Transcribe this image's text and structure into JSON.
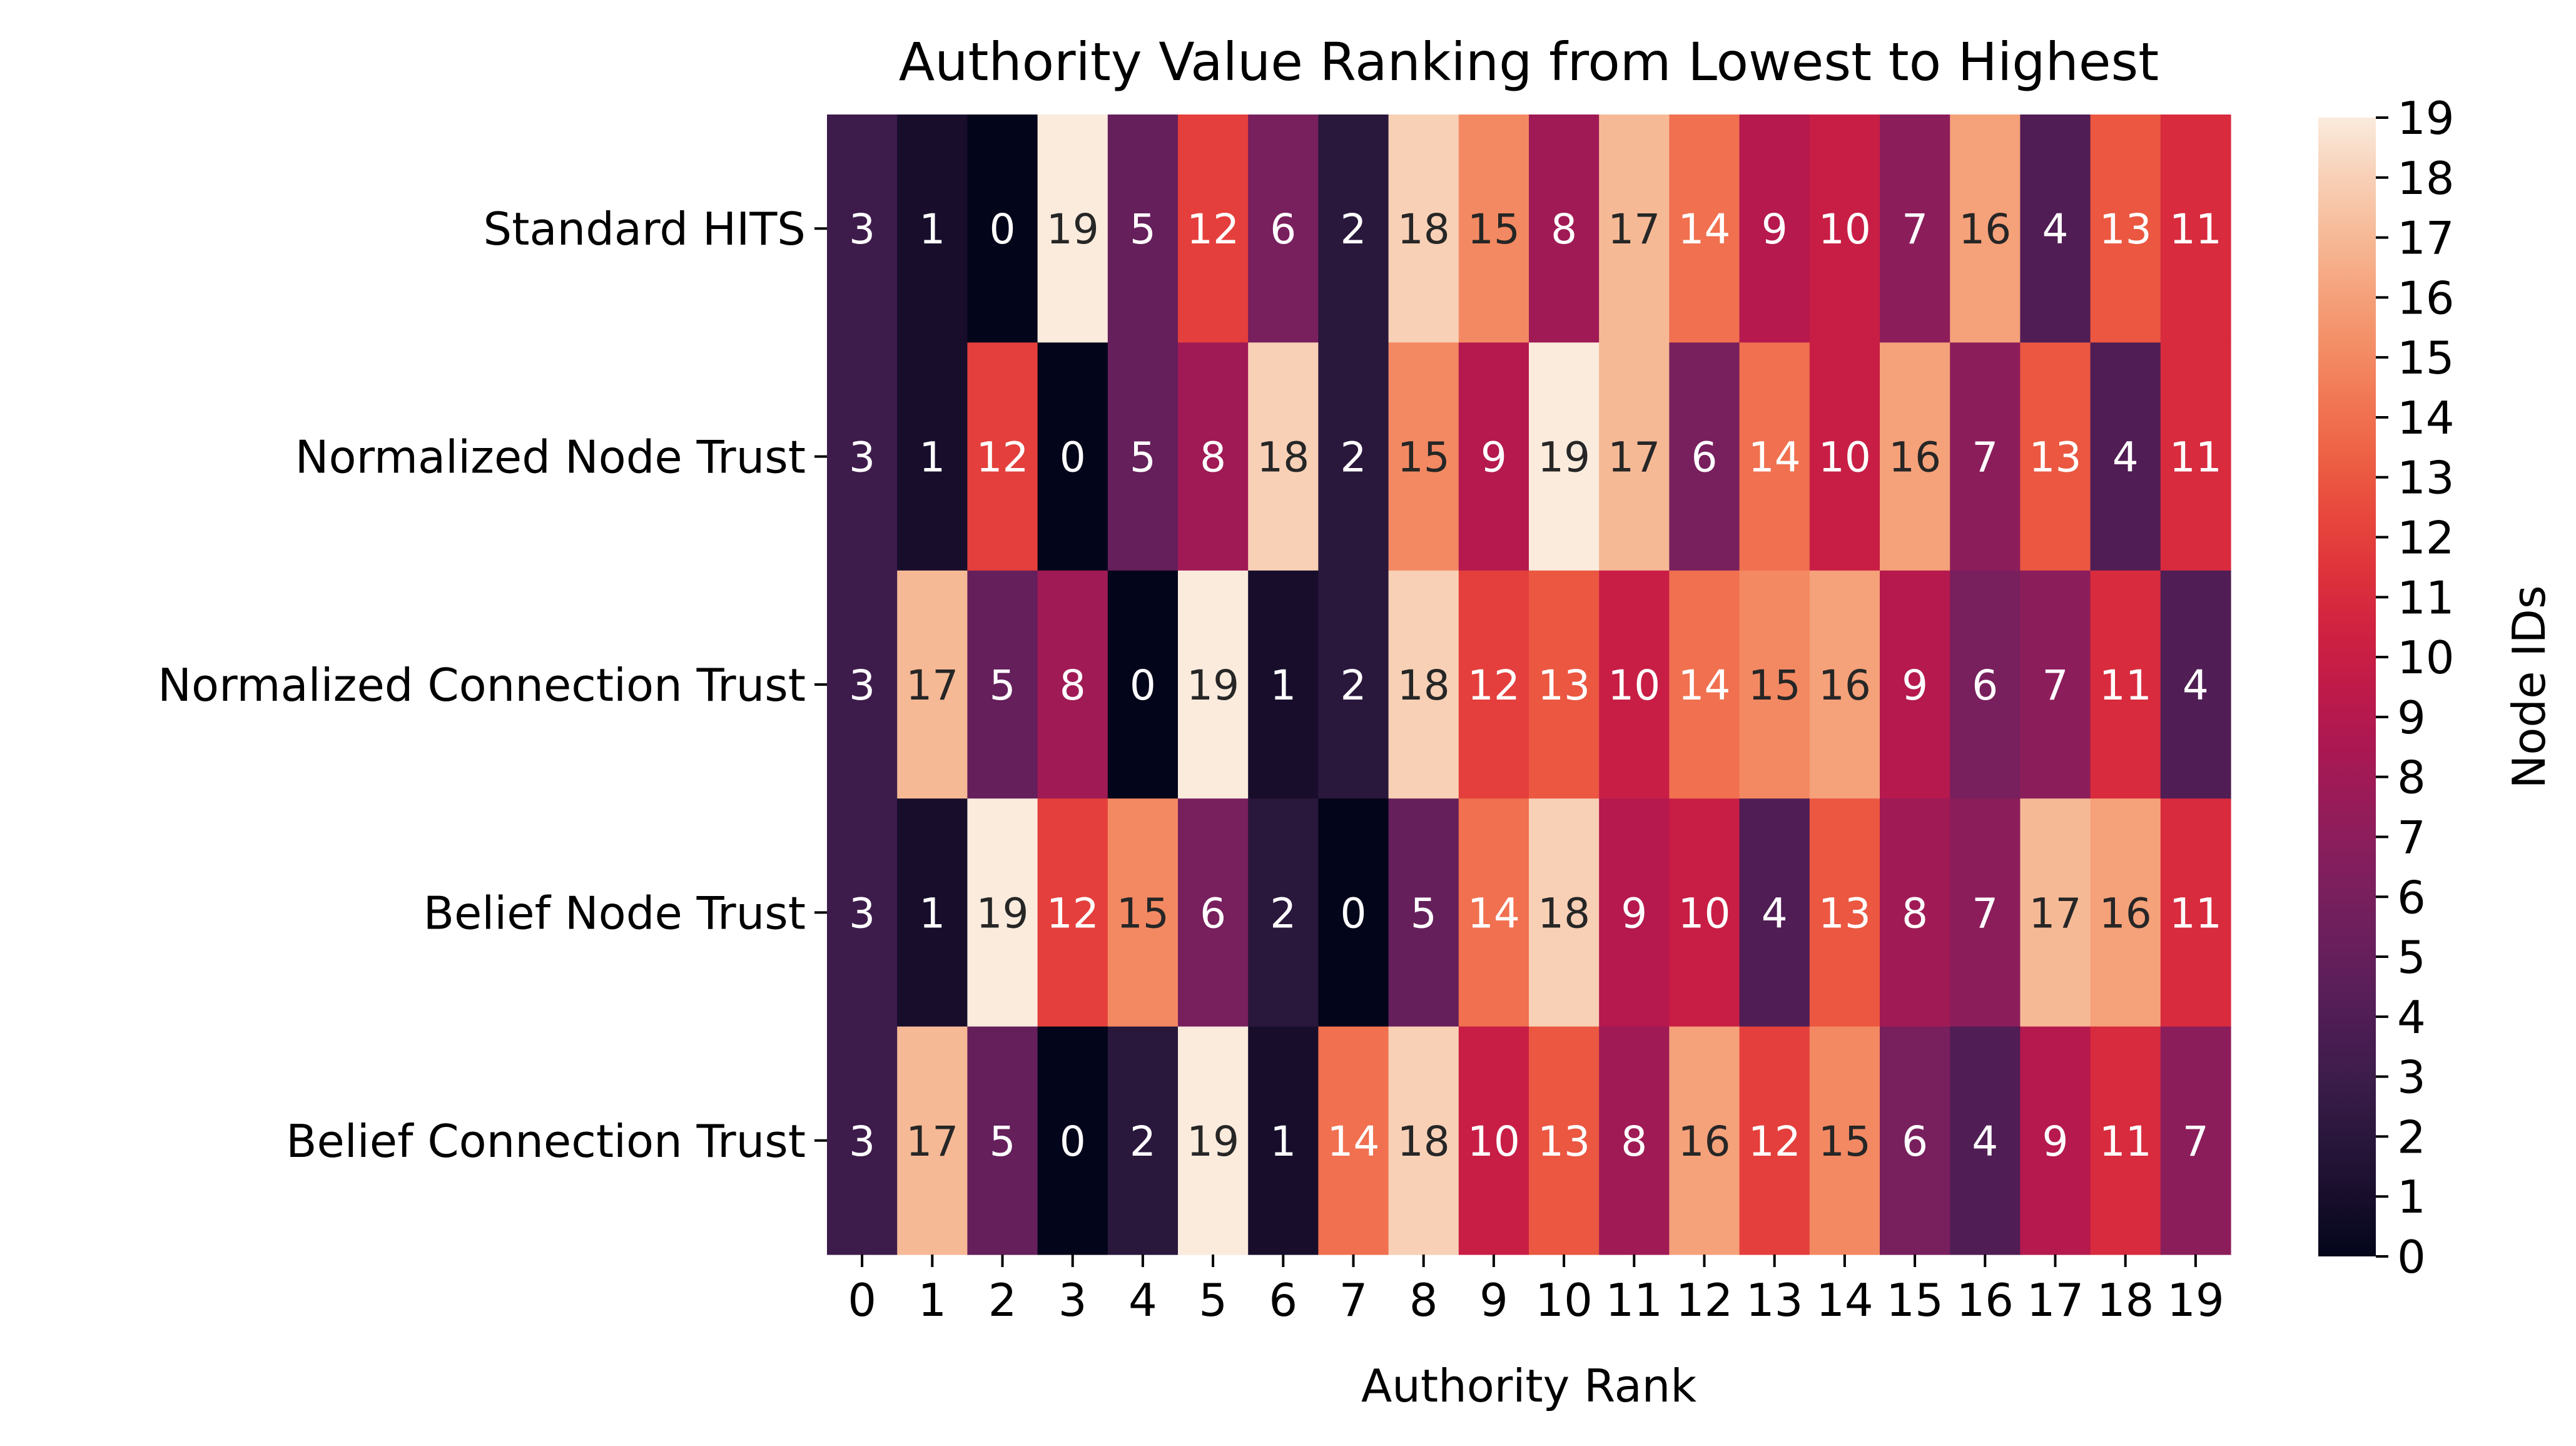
{
  "chart_data": {
    "type": "heatmap",
    "title": "Authority Value Ranking from Lowest to Highest",
    "xlabel": "Authority Rank",
    "ylabel": "",
    "colorbar_label": "Node IDs",
    "colormap": "rocket",
    "vmin": 0,
    "vmax": 19,
    "x_categories": [
      "0",
      "1",
      "2",
      "3",
      "4",
      "5",
      "6",
      "7",
      "8",
      "9",
      "10",
      "11",
      "12",
      "13",
      "14",
      "15",
      "16",
      "17",
      "18",
      "19"
    ],
    "y_categories": [
      "Standard HITS",
      "Normalized Node Trust",
      "Normalized Connection Trust",
      "Belief Node Trust",
      "Belief Connection Trust"
    ],
    "colorbar_ticks": [
      "0",
      "1",
      "2",
      "3",
      "4",
      "5",
      "6",
      "7",
      "8",
      "9",
      "10",
      "11",
      "12",
      "13",
      "14",
      "15",
      "16",
      "17",
      "18",
      "19"
    ],
    "values": [
      [
        3,
        1,
        0,
        19,
        5,
        12,
        6,
        2,
        18,
        15,
        8,
        17,
        14,
        9,
        10,
        7,
        16,
        4,
        13,
        11
      ],
      [
        3,
        1,
        12,
        0,
        5,
        8,
        18,
        2,
        15,
        9,
        19,
        17,
        6,
        14,
        10,
        16,
        7,
        13,
        4,
        11
      ],
      [
        3,
        17,
        5,
        8,
        0,
        19,
        1,
        2,
        18,
        12,
        13,
        10,
        14,
        15,
        16,
        9,
        6,
        7,
        11,
        4
      ],
      [
        3,
        1,
        19,
        12,
        15,
        6,
        2,
        0,
        5,
        14,
        18,
        9,
        10,
        4,
        13,
        8,
        7,
        17,
        16,
        11
      ],
      [
        3,
        17,
        5,
        0,
        2,
        19,
        1,
        14,
        18,
        10,
        13,
        8,
        16,
        12,
        15,
        6,
        4,
        9,
        11,
        7
      ]
    ]
  }
}
